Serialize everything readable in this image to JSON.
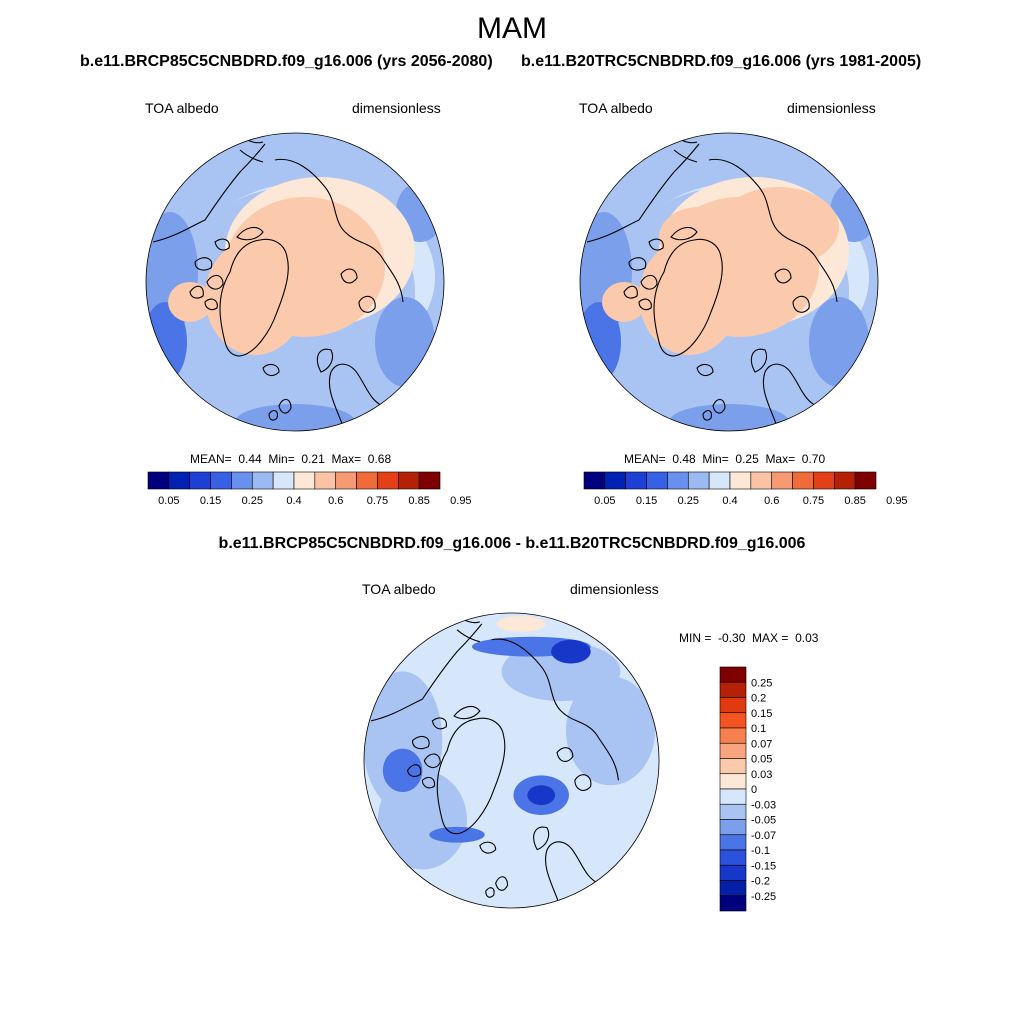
{
  "figure": {
    "season": "MAM"
  },
  "panels": [
    {
      "case_title": "b.e11.BRCP85C5CNBDRD.f09_g16.006 (yrs 2056-2080)",
      "left_label": "TOA albedo",
      "right_label": "dimensionless",
      "mean_label": "MEAN=",
      "mean_value": "0.44",
      "min_label": "Min=",
      "min_value": "0.21",
      "max_label": "Max=",
      "max_value": "0.68"
    },
    {
      "case_title": "b.e11.B20TRC5CNBDRD.f09_g16.006 (yrs 1981-2005)",
      "left_label": "TOA albedo",
      "right_label": "dimensionless",
      "mean_label": "MEAN=",
      "mean_value": "0.48",
      "min_label": "Min=",
      "min_value": "0.25",
      "max_label": "Max=",
      "max_value": "0.70"
    }
  ],
  "diff_panel": {
    "title": "b.e11.BRCP85C5CNBDRD.f09_g16.006 - b.e11.B20TRC5CNBDRD.f09_g16.006",
    "left_label": "TOA albedo",
    "right_label": "dimensionless",
    "min_label": "MIN =",
    "min_value": "-0.30",
    "max_label": "MAX =",
    "max_value": "0.03"
  },
  "colorbars": {
    "absolute": {
      "colors": [
        "#00007f",
        "#0022b4",
        "#1d3fd4",
        "#3860e6",
        "#6890ee",
        "#9bbaf2",
        "#d6e6fb",
        "#fde7d6",
        "#fbc2a5",
        "#f59a72",
        "#f06b38",
        "#e34018",
        "#b52105",
        "#7e0000"
      ],
      "tick_labels": [
        "0.05",
        "0.15",
        "0.25",
        "0.4",
        "0.6",
        "0.75",
        "0.85",
        "0.95"
      ]
    },
    "difference": {
      "colors": [
        "#7e0000",
        "#b52105",
        "#e23a10",
        "#f45520",
        "#f6814f",
        "#f7a47f",
        "#fbc9ab",
        "#fde7d6",
        "#d6e6fb",
        "#a9c4f2",
        "#7c9fec",
        "#4b75e6",
        "#2c52dd",
        "#1737c9",
        "#0420a8",
        "#00007f"
      ],
      "tick_labels": [
        "0.25",
        "0.2",
        "0.15",
        "0.1",
        "0.07",
        "0.05",
        "0.03",
        "0",
        "-0.03",
        "-0.05",
        "-0.07",
        "-0.1",
        "-0.15",
        "-0.2",
        "-0.25"
      ]
    }
  },
  "map_palette": {
    "ocean": "#a9c4f2",
    "ocean_light": "#d6e6fb",
    "ocean_dark": "#7c9fec",
    "ocean_deep": "#4b75e6",
    "ice": "#fbc9ab",
    "ice_edge": "#fde7d6",
    "diff_base": "#d6e6fb",
    "diff_mid": "#a9c4f2",
    "diff_strong": "#4b75e6",
    "diff_max": "#1737c9",
    "diff_pos": "#fde7d6",
    "coast": "#000000"
  }
}
